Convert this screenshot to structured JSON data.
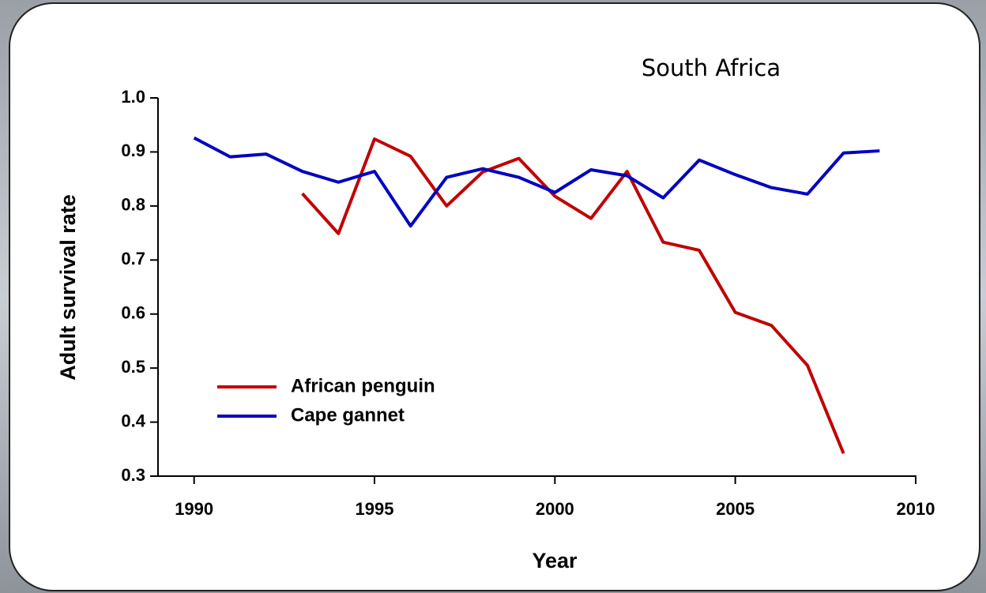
{
  "chart_data": {
    "type": "line",
    "title": "South Africa",
    "x_label": "Year",
    "y_label": "Adult survival rate",
    "x": [
      1990,
      1991,
      1992,
      1993,
      1994,
      1995,
      1996,
      1997,
      1998,
      1999,
      2000,
      2001,
      2002,
      2003,
      2004,
      2005,
      2006,
      2007,
      2008,
      2009
    ],
    "series": [
      {
        "name": "African penguin",
        "color": "#c00000",
        "values": [
          null,
          null,
          null,
          0.823,
          0.749,
          0.924,
          0.892,
          0.8,
          0.863,
          0.888,
          0.818,
          0.777,
          0.864,
          0.733,
          0.718,
          0.603,
          0.579,
          0.505,
          0.342,
          null
        ]
      },
      {
        "name": "Cape gannet",
        "color": "#0000c0",
        "values": [
          0.926,
          0.891,
          0.896,
          0.864,
          0.844,
          0.864,
          0.763,
          0.853,
          0.869,
          0.853,
          0.825,
          0.867,
          0.856,
          0.815,
          0.885,
          0.858,
          0.834,
          0.822,
          0.898,
          0.902
        ]
      }
    ],
    "xlim": [
      1989,
      2010
    ],
    "xticks": [
      1990,
      1995,
      2000,
      2005,
      2010
    ],
    "ylim": [
      0.3,
      1.0
    ],
    "yticks": [
      0.3,
      0.4,
      0.5,
      0.6,
      0.7,
      0.8,
      0.9,
      {
        "value": 1,
        "label": "1.0"
      }
    ],
    "legend": "lower left",
    "grid": false
  }
}
